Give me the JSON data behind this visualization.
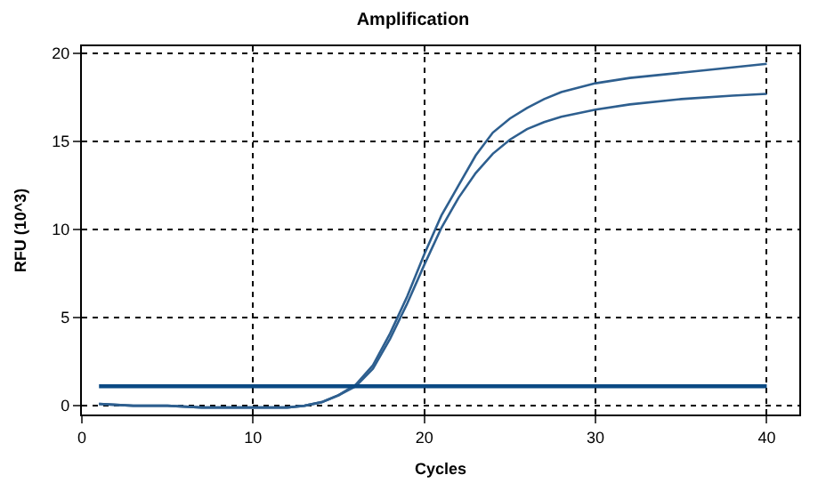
{
  "chart_data": {
    "type": "line",
    "title": "Amplification",
    "xlabel": "Cycles",
    "ylabel": "RFU (10^3)",
    "xlim": [
      0,
      41.9
    ],
    "ylim": [
      -0.5,
      20.4
    ],
    "xticks": [
      0,
      10,
      20,
      30,
      40
    ],
    "yticks": [
      0,
      5,
      10,
      15,
      20
    ],
    "grid": true,
    "line_style": "solid",
    "marker": "none",
    "series": [
      {
        "color": "#2e5f8f",
        "x": [
          1,
          3,
          5,
          7,
          9,
          11,
          12,
          13,
          14,
          15,
          16,
          17,
          18,
          19,
          20,
          21,
          22,
          23,
          24,
          25,
          26,
          27,
          28,
          30,
          32,
          35,
          38,
          40
        ],
        "values": [
          0.1,
          0,
          0,
          -0.1,
          -0.1,
          -0.1,
          -0.1,
          0,
          0.2,
          0.6,
          1.2,
          2.3,
          4.1,
          6.2,
          8.6,
          10.8,
          12.5,
          14.2,
          15.5,
          16.3,
          16.9,
          17.4,
          17.8,
          18.3,
          18.6,
          18.9,
          19.2,
          19.4
        ]
      },
      {
        "color": "#2e5f8f",
        "x": [
          1,
          3,
          5,
          7,
          9,
          11,
          12,
          13,
          14,
          15,
          16,
          17,
          18,
          19,
          20,
          21,
          22,
          23,
          24,
          25,
          26,
          27,
          28,
          30,
          32,
          35,
          38,
          40
        ],
        "values": [
          0.1,
          0,
          0,
          -0.1,
          -0.1,
          -0.1,
          -0.1,
          0,
          0.2,
          0.6,
          1.1,
          2.1,
          3.8,
          5.8,
          8.0,
          10.1,
          11.8,
          13.2,
          14.3,
          15.1,
          15.7,
          16.1,
          16.4,
          16.8,
          17.1,
          17.4,
          17.6,
          17.7
        ]
      },
      {
        "color": "#0b4a84",
        "x": [
          1,
          40
        ],
        "values": [
          1.1,
          1.1
        ]
      }
    ]
  }
}
